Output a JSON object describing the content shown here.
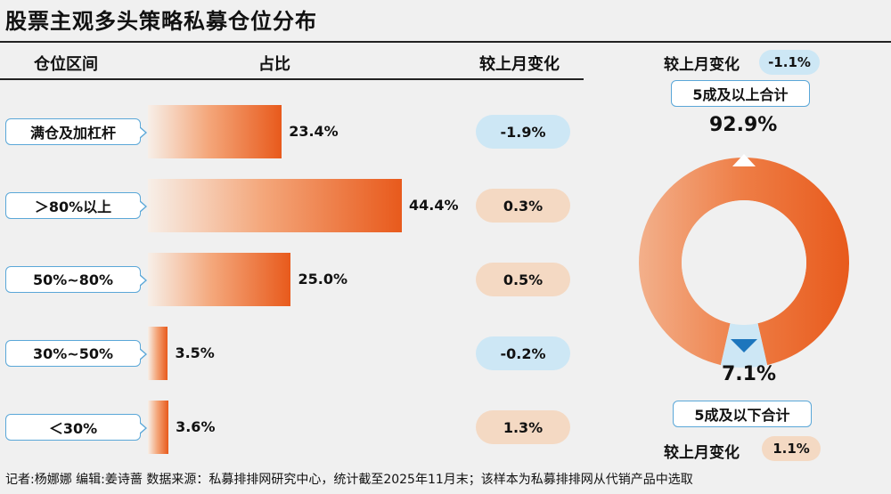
{
  "title": "股票主观多头策略私募仓位分布",
  "headers": {
    "range": "仓位区间",
    "share": "占比",
    "change": "较上月变化"
  },
  "colors": {
    "bar_start": "#f7efe8",
    "bar_end": "#e85a1c",
    "neg_pill": "#cde7f5",
    "pos_pill": "#f4d9c3",
    "border": "#5aa7d8",
    "donut_main": "#e85a1c",
    "donut_small": "#cde7f5"
  },
  "chart_data": [
    {
      "type": "bar",
      "title": "股票主观多头策略私募仓位分布",
      "categories": [
        "满仓及加杠杆",
        "＞80%以上",
        "50%~80%",
        "30%~50%",
        "＜30%"
      ],
      "values": [
        23.4,
        44.4,
        25.0,
        3.5,
        3.6
      ],
      "value_labels": [
        "23.4%",
        "44.4%",
        "25.0%",
        "3.5%",
        "3.6%"
      ],
      "changes": [
        "-1.9%",
        "0.3%",
        "0.5%",
        "-0.2%",
        "1.3%"
      ],
      "change_values": [
        -1.9,
        0.3,
        0.5,
        -0.2,
        1.3
      ],
      "unit": "%"
    },
    {
      "type": "pie",
      "labels": [
        "5成及以上合计",
        "5成及以下合计"
      ],
      "values": [
        92.9,
        7.1
      ],
      "value_labels": [
        "92.9%",
        "7.1%"
      ],
      "change_label": "较上月变化",
      "changes": [
        "-1.1%",
        "1.1%"
      ]
    }
  ],
  "footer": "记者:杨娜娜   编辑:姜诗蔷   数据来源：私募排排网研究中心，统计截至2025年11月末；该样本为私募排排网从代销产品中选取"
}
